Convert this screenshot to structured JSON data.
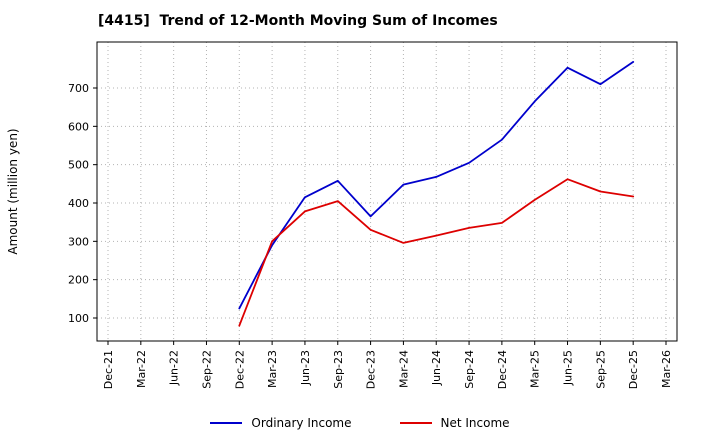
{
  "chart_data": {
    "type": "line",
    "title": "[4415]  Trend of 12-Month Moving Sum of Incomes",
    "xlabel": "",
    "ylabel": "Amount (million yen)",
    "categories": [
      "Dec-21",
      "Mar-22",
      "Jun-22",
      "Sep-22",
      "Dec-22",
      "Mar-23",
      "Jun-23",
      "Sep-23",
      "Dec-23",
      "Mar-24",
      "Jun-24",
      "Sep-24",
      "Dec-24",
      "Mar-25",
      "Jun-25",
      "Sep-25",
      "Dec-25",
      "Mar-26"
    ],
    "y_ticks": [
      100,
      200,
      300,
      400,
      500,
      600,
      700
    ],
    "ylim": [
      40,
      820
    ],
    "grid": true,
    "legend_position": "bottom",
    "series": [
      {
        "name": "Ordinary Income",
        "color": "#0000cc",
        "x_start_index": 4,
        "values": [
          125,
          290,
          415,
          458,
          365,
          448,
          468,
          505,
          565,
          665,
          753,
          710,
          768
        ]
      },
      {
        "name": "Net Income",
        "color": "#dd0000",
        "x_start_index": 4,
        "values": [
          80,
          300,
          378,
          405,
          330,
          296,
          315,
          335,
          348,
          408,
          462,
          430,
          417
        ]
      }
    ]
  }
}
